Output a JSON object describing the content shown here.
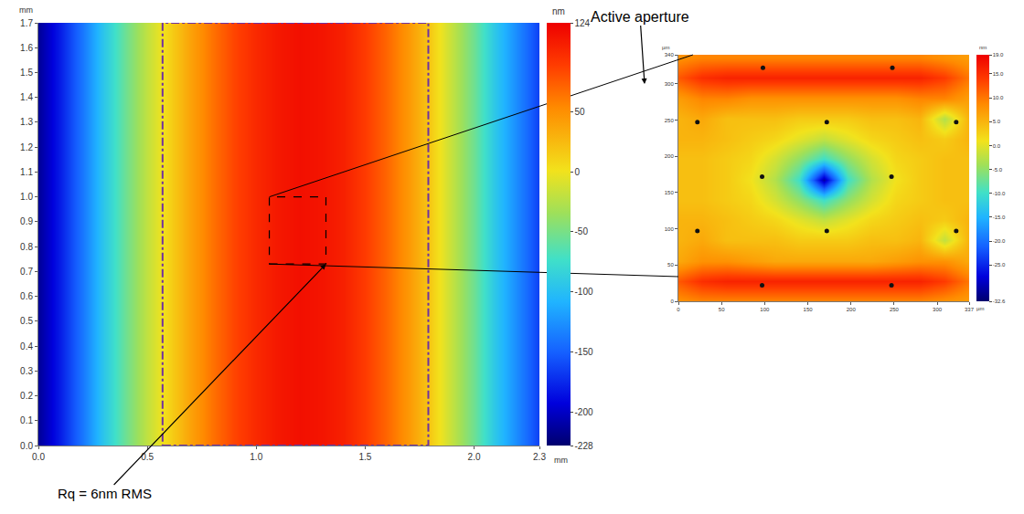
{
  "chart_data": [
    {
      "type": "heatmap",
      "x": [
        0,
        0.1,
        0.2,
        0.3,
        0.4,
        0.5,
        0.6,
        0.7,
        0.8,
        0.9,
        1.0,
        1.1,
        1.2,
        1.3,
        1.4,
        1.5,
        1.6,
        1.7,
        1.8,
        1.9,
        2.0,
        2.1,
        2.2,
        2.3
      ],
      "y": [
        0,
        0.425,
        0.85,
        1.275,
        1.7
      ],
      "z": [
        [
          -215,
          -180,
          -140,
          -95,
          -55,
          -20,
          10,
          40,
          65,
          85,
          100,
          110,
          115,
          112,
          105,
          90,
          70,
          45,
          15,
          -20,
          -55,
          -95,
          -130,
          -165
        ],
        [
          -215,
          -180,
          -140,
          -95,
          -55,
          -20,
          10,
          40,
          65,
          85,
          100,
          110,
          115,
          112,
          105,
          90,
          70,
          45,
          15,
          -20,
          -55,
          -95,
          -130,
          -165
        ],
        [
          -215,
          -180,
          -140,
          -95,
          -55,
          -20,
          10,
          40,
          65,
          85,
          100,
          110,
          115,
          112,
          105,
          90,
          70,
          45,
          15,
          -20,
          -55,
          -95,
          -130,
          -165
        ],
        [
          -215,
          -180,
          -140,
          -95,
          -55,
          -20,
          10,
          40,
          65,
          85,
          100,
          110,
          115,
          112,
          105,
          90,
          70,
          45,
          15,
          -20,
          -55,
          -95,
          -130,
          -165
        ],
        [
          -215,
          -180,
          -140,
          -95,
          -55,
          -20,
          10,
          40,
          65,
          85,
          100,
          110,
          115,
          112,
          105,
          90,
          70,
          45,
          15,
          -20,
          -55,
          -95,
          -130,
          -165
        ]
      ],
      "xlim": [
        0,
        2.3
      ],
      "ylim": [
        0,
        1.7
      ],
      "xticks": [
        {
          "value": 0,
          "label": "0.0"
        },
        0.5,
        {
          "value": 1,
          "label": "1.0"
        },
        1.5,
        {
          "value": 2,
          "label": "2.0"
        },
        2.3
      ],
      "yticks": [
        {
          "value": 0,
          "label": "0.0"
        },
        0.1,
        0.2,
        0.3,
        0.4,
        0.5,
        0.6,
        0.7,
        0.8,
        0.9,
        {
          "value": 1,
          "label": "1.0"
        },
        1.1,
        1.2,
        1.3,
        1.4,
        1.5,
        1.6,
        1.7
      ],
      "x_label": "mm",
      "y_label": "mm",
      "grid": false,
      "colorbar": {
        "title": "nm",
        "range": [
          -228,
          124
        ],
        "ticks": [
          124,
          50,
          0,
          -50,
          -100,
          -150,
          -200,
          -228
        ]
      },
      "aperture": {
        "x": [
          0.57,
          1.79
        ],
        "y": [
          0,
          1.7
        ],
        "color": "#7030a0",
        "line_style": "dashdot"
      },
      "zoom_box": {
        "x": [
          1.06,
          1.32
        ],
        "y": [
          0.73,
          1.0
        ],
        "color": "#000000",
        "line_style": "dash"
      },
      "annotations": [
        {
          "text": "Active aperture"
        },
        {
          "text": "Rq = 6nm RMS"
        }
      ]
    },
    {
      "type": "heatmap",
      "x": [
        0,
        28,
        56,
        84,
        112,
        140,
        168,
        196,
        224,
        252,
        280,
        308,
        336
      ],
      "y": [
        0,
        28,
        56,
        84,
        112,
        140,
        168,
        196,
        224,
        252,
        280,
        308,
        336
      ],
      "z": [
        [
          8,
          9,
          9,
          9,
          9,
          9,
          9,
          9,
          9,
          9,
          9,
          8,
          7
        ],
        [
          12,
          15,
          16,
          16,
          16,
          16,
          16,
          16,
          16,
          16,
          16,
          14,
          10
        ],
        [
          6,
          8,
          8,
          7,
          6,
          6,
          6,
          6,
          6,
          7,
          8,
          8,
          6
        ],
        [
          5,
          6,
          4,
          4,
          4,
          3,
          3,
          3,
          4,
          4,
          5,
          -2,
          5
        ],
        [
          5,
          5,
          4,
          3,
          2,
          0,
          -2,
          0,
          2,
          3,
          4,
          3,
          5
        ],
        [
          4,
          4,
          3,
          2,
          -1,
          -5,
          -10,
          -5,
          -1,
          2,
          3,
          4,
          4
        ],
        [
          4,
          4,
          3,
          1,
          -3,
          -10,
          -30,
          -10,
          -3,
          1,
          3,
          4,
          4
        ],
        [
          4,
          4,
          3,
          2,
          -1,
          -5,
          -10,
          -5,
          -1,
          2,
          3,
          4,
          4
        ],
        [
          5,
          5,
          4,
          3,
          2,
          0,
          -2,
          0,
          2,
          3,
          4,
          3,
          5
        ],
        [
          5,
          6,
          4,
          4,
          4,
          3,
          3,
          3,
          4,
          4,
          5,
          -3,
          5
        ],
        [
          7,
          9,
          9,
          8,
          8,
          8,
          8,
          8,
          8,
          8,
          9,
          9,
          7
        ],
        [
          12,
          15,
          16,
          16,
          16,
          16,
          16,
          16,
          16,
          16,
          16,
          14,
          10
        ],
        [
          8,
          9,
          9,
          9,
          9,
          9,
          9,
          9,
          9,
          9,
          9,
          8,
          7
        ]
      ],
      "xlim": [
        0,
        337
      ],
      "ylim": [
        0,
        340
      ],
      "xticks": [
        0,
        50,
        100,
        150,
        200,
        250,
        300,
        337
      ],
      "yticks": [
        0,
        50,
        100,
        150,
        200,
        250,
        300,
        340
      ],
      "x_label": "µm",
      "y_label": "µm",
      "grid": false,
      "colorbar": {
        "title": "nm",
        "range": [
          -32.6,
          19.0
        ],
        "ticks": [
          {
            "value": 19,
            "label": "19.0"
          },
          {
            "value": 15,
            "label": "15.0"
          },
          {
            "value": 10,
            "label": "10.0"
          },
          {
            "value": 5,
            "label": "5.0"
          },
          {
            "value": 0,
            "label": "0.0"
          },
          {
            "value": -5,
            "label": "-5.0"
          },
          {
            "value": -10,
            "label": "-10.0"
          },
          {
            "value": -15,
            "label": "-15.0"
          },
          {
            "value": -20,
            "label": "-20.0"
          },
          {
            "value": -25,
            "label": "-25.0"
          },
          -32.6
        ]
      },
      "points": {
        "type": "scatter",
        "marker": "circle",
        "color": "#111111",
        "x": [
          98,
          248,
          22,
          172,
          322,
          97,
          247,
          22,
          172,
          322,
          97,
          247
        ],
        "y": [
          322,
          322,
          247,
          247,
          247,
          172,
          172,
          97,
          97,
          97,
          22,
          22
        ]
      }
    }
  ]
}
